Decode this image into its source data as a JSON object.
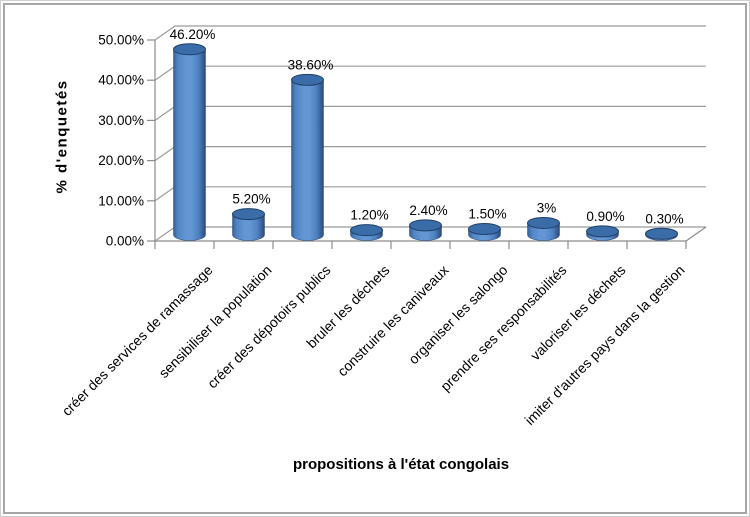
{
  "chart_data": {
    "type": "bar",
    "subtype": "3d-cylinder",
    "title": "",
    "xlabel": "propositions à l'état congolais",
    "ylabel": "% d'enquetés",
    "categories": [
      "créer des services de ramassage",
      "sensibiliser la population",
      "créer des dépotoirs publics",
      "bruler les déchets",
      "construire les caniveaux",
      "organiser les salongo",
      "prendre ses responsabilités",
      "valoriser les déchets",
      "imiter d'autres pays dans la gestion"
    ],
    "values": [
      46.2,
      5.2,
      38.6,
      1.2,
      2.4,
      1.5,
      3,
      0.9,
      0.3
    ],
    "data_labels": [
      "46.20%",
      "5.20%",
      "38.60%",
      "1.20%",
      "2.40%",
      "1.50%",
      "3%",
      "0.90%",
      "0.30%"
    ],
    "ylim": [
      0,
      50
    ],
    "ytick_step": 10,
    "ytick_labels": [
      "0.00%",
      "10.00%",
      "20.00%",
      "30.00%",
      "40.00%",
      "50.00%"
    ],
    "grid": true,
    "legend": false,
    "colors": {
      "bar_main": "#4F81BD",
      "bar_edge_dark": "#2C4A77",
      "bar_shade": "#345E94",
      "bar_highlight": "#6396D3",
      "bar_mid": "#4E82C2",
      "top_face": "#3A6CA8",
      "top_rim": "#1F3F66",
      "gridline": "#9b9b9b",
      "axis": "#8c8c8c",
      "text": "#000000",
      "frame_border": "#a6a6a6"
    }
  }
}
